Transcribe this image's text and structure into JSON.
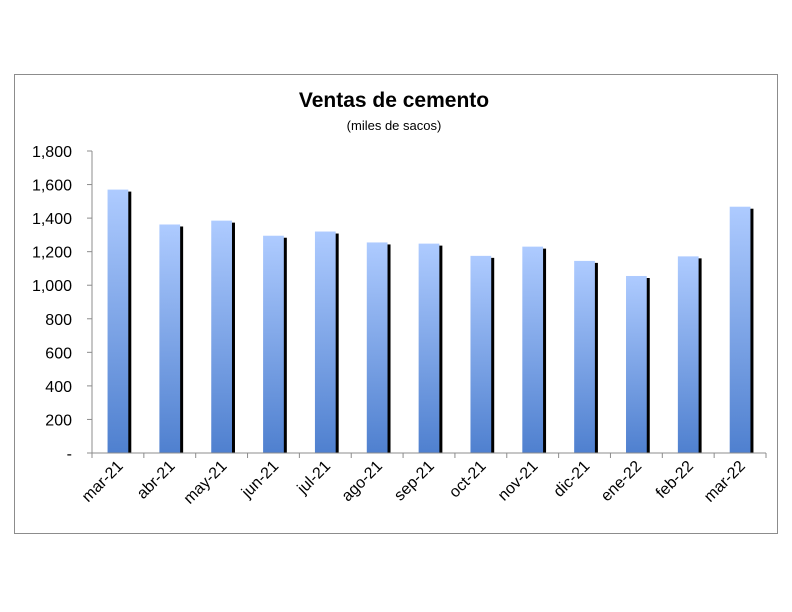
{
  "chart_data": {
    "type": "bar",
    "title": "Ventas de cemento",
    "subtitle": "(miles de sacos)",
    "categories": [
      "mar-21",
      "abr-21",
      "may-21",
      "jun-21",
      "jul-21",
      "ago-21",
      "sep-21",
      "oct-21",
      "nov-21",
      "dic-21",
      "ene-22",
      "feb-22",
      "mar-22"
    ],
    "values": [
      1570,
      1362,
      1385,
      1295,
      1320,
      1255,
      1248,
      1175,
      1230,
      1145,
      1055,
      1172,
      1468
    ],
    "ylim": [
      0,
      1800
    ],
    "yticks": [
      0,
      200,
      400,
      600,
      800,
      1000,
      1200,
      1400,
      1600,
      1800
    ],
    "ytick_labels": [
      "-",
      "200",
      "400",
      "600",
      "800",
      "1,000",
      "1,200",
      "1,400",
      "1,600",
      "1,800"
    ],
    "grid": false,
    "legend": "none",
    "bar_gradient": [
      "#aecbff",
      "#4f80cf"
    ],
    "bar_shadow": "#000000"
  }
}
